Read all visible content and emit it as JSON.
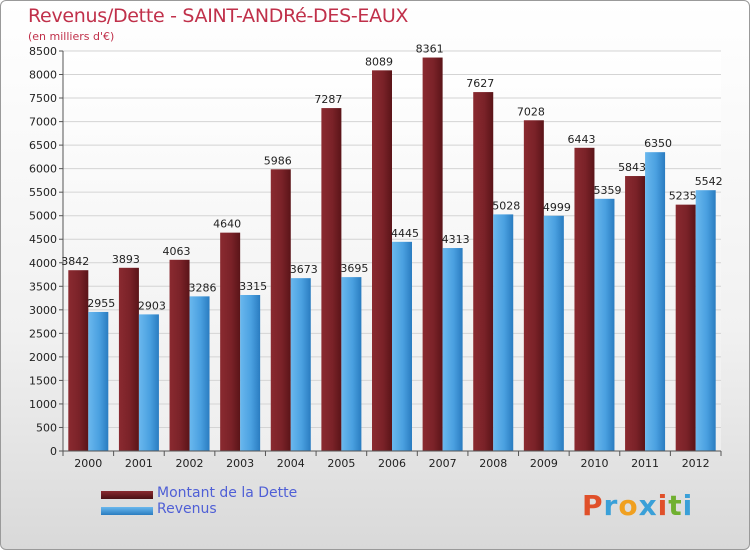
{
  "title": "Revenus/Dette - SAINT-ANDRé-DES-EAUX",
  "subtitle": "(en milliers d'€)",
  "chart_data": {
    "type": "bar",
    "categories": [
      "2000",
      "2001",
      "2002",
      "2003",
      "2004",
      "2005",
      "2006",
      "2007",
      "2008",
      "2009",
      "2010",
      "2011",
      "2012"
    ],
    "series": [
      {
        "name": "Montant de la Dette",
        "color": "#6e1c22",
        "values": [
          3842,
          3893,
          4063,
          4640,
          5986,
          7287,
          8089,
          8361,
          7627,
          7028,
          6443,
          5843,
          5235
        ]
      },
      {
        "name": "Revenus",
        "color": "#4aa0e0",
        "values": [
          2955,
          2903,
          3286,
          3315,
          3673,
          3695,
          4445,
          4313,
          5028,
          4999,
          5359,
          6350,
          5542
        ]
      }
    ],
    "ylim": [
      0,
      8500
    ],
    "yticks": [
      0,
      500,
      1000,
      1500,
      2000,
      2500,
      3000,
      3500,
      4000,
      4500,
      5000,
      5500,
      6000,
      6500,
      7000,
      7500,
      8000,
      8500
    ],
    "grid": true,
    "legend_position": "bottom-left"
  },
  "legend": [
    {
      "label": "Montant de la Dette",
      "color": "#6e1c22"
    },
    {
      "label": "Revenus",
      "color": "#4aa0e0"
    }
  ],
  "logo": {
    "letters": [
      "P",
      "r",
      "o",
      "x",
      "i",
      "t",
      "i"
    ],
    "colors": [
      "#e0502a",
      "#3aa0d8",
      "#f0a020",
      "#3aa0d8",
      "#e0502a",
      "#70b030",
      "#3aa0d8"
    ]
  }
}
